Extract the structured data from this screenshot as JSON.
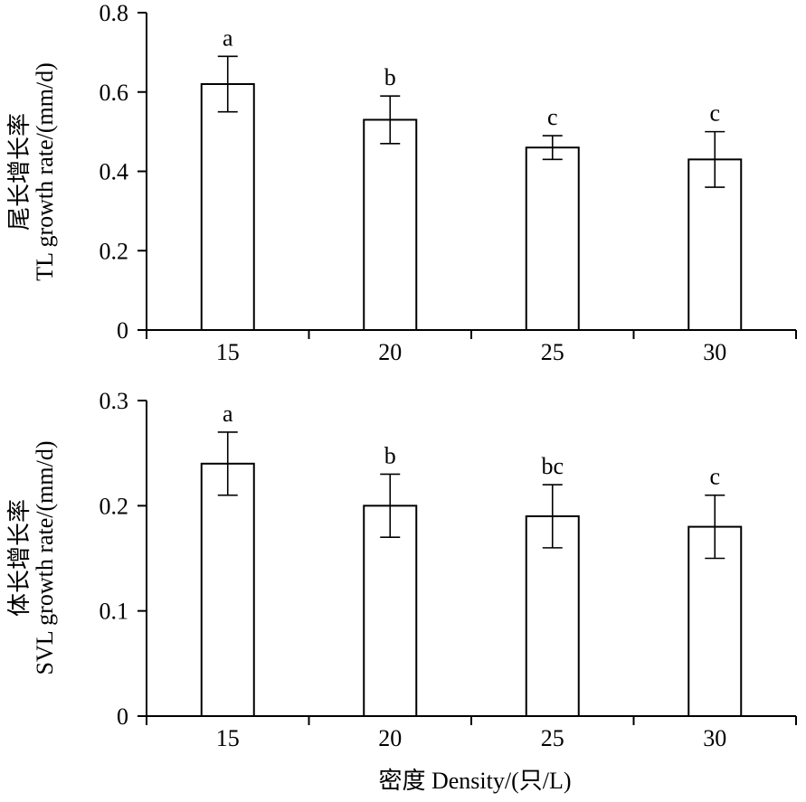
{
  "chart_data": [
    {
      "type": "bar",
      "categories": [
        "15",
        "20",
        "25",
        "30"
      ],
      "values": [
        0.62,
        0.53,
        0.46,
        0.43
      ],
      "errors": [
        0.07,
        0.06,
        0.03,
        0.07
      ],
      "significance": [
        "a",
        "b",
        "c",
        "c"
      ],
      "ylabel_cn": "尾长增长率",
      "ylabel_en": "TL growth rate/(mm/d)",
      "ylim": [
        0,
        0.8
      ],
      "yticks": [
        "0",
        "0.2",
        "0.4",
        "0.6",
        "0.8"
      ],
      "grid": false
    },
    {
      "type": "bar",
      "categories": [
        "15",
        "20",
        "25",
        "30"
      ],
      "values": [
        0.24,
        0.2,
        0.19,
        0.18
      ],
      "errors": [
        0.03,
        0.03,
        0.03,
        0.03
      ],
      "significance": [
        "a",
        "b",
        "bc",
        "c"
      ],
      "ylabel_cn": "体长增长率",
      "ylabel_en": "SVL growth rate/(mm/d)",
      "ylim": [
        0,
        0.3
      ],
      "yticks": [
        "0",
        "0.1",
        "0.2",
        "0.3"
      ],
      "grid": false
    }
  ],
  "xlabel": "密度 Density/(只/L)"
}
